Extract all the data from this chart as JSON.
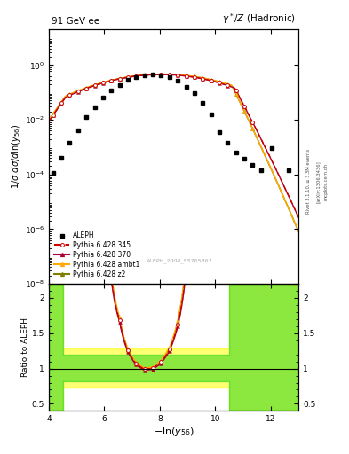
{
  "title_left": "91 GeV ee",
  "title_right": "γ*/Z (Hadronic)",
  "right_label1": "Rivet 3.1.10, ≥ 3.3M events",
  "right_label2": "[arXiv:1306.3436]",
  "right_label3": "mcplots.cern.ch",
  "watermark": "ALEPH_2004_S5765862",
  "ylabel_main": "1/σ dσ/dln(y_{56})",
  "ylabel_ratio": "Ratio to ALEPH",
  "xlabel": "-ln(y_{56})",
  "xlim": [
    4,
    13
  ],
  "ylim_main": [
    1e-08,
    20
  ],
  "ylim_ratio": [
    0.4,
    2.2
  ],
  "ratio_yticks": [
    0.5,
    1.0,
    1.5,
    2.0
  ],
  "ratio_yticklabels": [
    "0.5",
    "1",
    "1.5",
    "2"
  ],
  "xticks": [
    4,
    6,
    8,
    10,
    12
  ],
  "color_345": "#cc0000",
  "color_370": "#aa0033",
  "color_ambt1": "#ffaa00",
  "color_z2": "#808000",
  "color_aleph": "#000000",
  "color_green_band": "#00cc00",
  "color_yellow_band": "#ffff00",
  "green_alpha": 0.45,
  "yellow_alpha": 0.55
}
